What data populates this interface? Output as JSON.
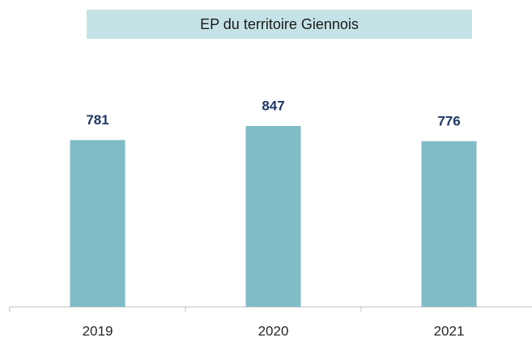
{
  "chart_data": {
    "type": "bar",
    "title": "EP du territoire Giennois",
    "categories": [
      "2019",
      "2020",
      "2021"
    ],
    "values": [
      781,
      847,
      776
    ],
    "color": "#7fbcc6"
  }
}
